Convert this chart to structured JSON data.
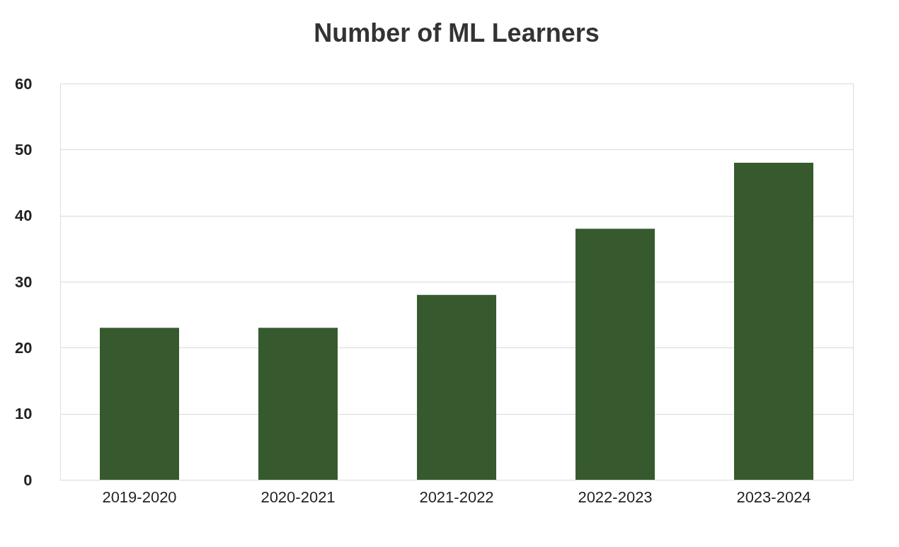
{
  "chart_data": {
    "type": "bar",
    "title": "Number of ML Learners",
    "categories": [
      "2019-2020",
      "2020-2021",
      "2021-2022",
      "2022-2023",
      "2023-2024"
    ],
    "values": [
      23,
      23,
      28,
      38,
      48
    ],
    "color": "#365a2e",
    "ylim": [
      0,
      60
    ],
    "yticks": [
      0,
      10,
      20,
      30,
      40,
      50,
      60
    ],
    "grid": "y"
  }
}
